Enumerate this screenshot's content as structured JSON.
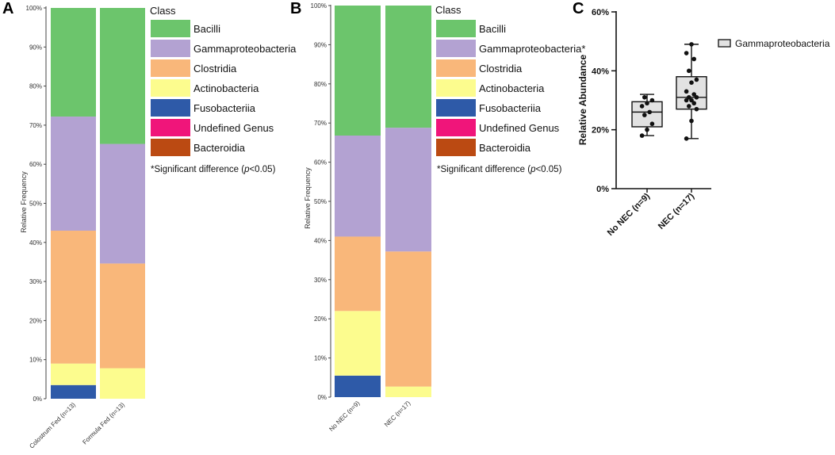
{
  "panels": {
    "a": {
      "letter": "A",
      "ylabel": "Relative Frequency",
      "yticks": [
        "0%",
        "10%",
        "20%",
        "30%",
        "40%",
        "50%",
        "60%",
        "70%",
        "80%",
        "90%",
        "100%"
      ],
      "legend_title": "Class",
      "note": "*Significant difference (p<0.05)",
      "note_parts": {
        "pre": "*Significant difference (",
        "p": "p",
        "post": "<0.05)"
      }
    },
    "b": {
      "letter": "B",
      "ylabel": "Relative Frequency",
      "yticks": [
        "0%",
        "10%",
        "20%",
        "30%",
        "40%",
        "50%",
        "60%",
        "70%",
        "80%",
        "90%",
        "100%"
      ],
      "legend_title": "Class",
      "note": "*Significant difference (p<0.05)",
      "note_parts": {
        "pre": "*Significant difference (",
        "p": "p",
        "post": "<0.05)"
      }
    },
    "c": {
      "letter": "C",
      "ylabel": "Relative Abundance",
      "yticks": [
        "0%",
        "20%",
        "40%",
        "60%"
      ],
      "legend_label": "Gammaproteobacteria"
    }
  },
  "colors": {
    "Bacilli": "#6cc56c",
    "Gammaproteobacteria": "#b3a2d2",
    "Clostridia": "#f9b77a",
    "Actinobacteria": "#fcfc8e",
    "Fusobacteriia": "#2e5aa8",
    "Undefined Genus": "#f0157a",
    "Bacteroidia": "#bb4a12"
  },
  "chart_data": [
    {
      "id": "A",
      "type": "bar",
      "stacked": true,
      "title": "",
      "xlabel": "",
      "ylabel": "Relative Frequency",
      "ylim": [
        0,
        100
      ],
      "categories": [
        "Colostrum Fed (n=13)",
        "Formula Fed (n=13)"
      ],
      "legend_title": "Class",
      "legend": [
        "Bacilli",
        "Gammaproteobacteria",
        "Clostridia",
        "Actinobacteria",
        "Fusobacteriia",
        "Undefined Genus",
        "Bacteroidia"
      ],
      "series": [
        {
          "name": "Fusobacteriia",
          "values": [
            3.5,
            0
          ]
        },
        {
          "name": "Actinobacteria",
          "values": [
            5.5,
            7.8
          ]
        },
        {
          "name": "Clostridia",
          "values": [
            34.0,
            26.8
          ]
        },
        {
          "name": "Gammaproteobacteria",
          "values": [
            29.2,
            30.6
          ]
        },
        {
          "name": "Bacilli",
          "values": [
            27.8,
            34.8
          ]
        }
      ]
    },
    {
      "id": "B",
      "type": "bar",
      "stacked": true,
      "title": "",
      "xlabel": "",
      "ylabel": "Relative Frequency",
      "ylim": [
        0,
        100
      ],
      "categories": [
        "No NEC (n=9)",
        "NEC (n=17)"
      ],
      "legend_title": "Class",
      "legend": [
        "Bacilli",
        "Gammaproteobacteria*",
        "Clostridia",
        "Actinobacteria",
        "Fusobacteriia",
        "Undefined Genus",
        "Bacteroidia"
      ],
      "series": [
        {
          "name": "Fusobacteriia",
          "values": [
            5.5,
            0
          ]
        },
        {
          "name": "Actinobacteria",
          "values": [
            16.5,
            2.7
          ]
        },
        {
          "name": "Clostridia",
          "values": [
            19.0,
            34.5
          ]
        },
        {
          "name": "Gammaproteobacteria",
          "values": [
            25.8,
            31.6
          ]
        },
        {
          "name": "Bacilli",
          "values": [
            33.2,
            31.2
          ]
        }
      ]
    },
    {
      "id": "C",
      "type": "box",
      "title": "",
      "xlabel": "",
      "ylabel": "Relative Abundance",
      "ylim": [
        0,
        60
      ],
      "categories": [
        "No NEC (n=9)",
        "NEC (n=17)"
      ],
      "legend": [
        "Gammaproteobacteria"
      ],
      "boxes": [
        {
          "name": "No NEC (n=9)",
          "min": 18,
          "q1": 21,
          "median": 26,
          "q3": 29.5,
          "max": 32,
          "points": [
            18,
            20,
            22,
            25,
            26,
            28,
            29,
            30,
            31
          ]
        },
        {
          "name": "NEC (n=17)",
          "min": 17,
          "q1": 27,
          "median": 31,
          "q3": 38,
          "max": 49,
          "points": [
            17,
            23,
            27,
            28,
            29,
            30,
            30,
            31,
            31,
            32,
            33,
            36,
            37,
            40,
            44,
            46,
            49
          ]
        }
      ]
    }
  ]
}
